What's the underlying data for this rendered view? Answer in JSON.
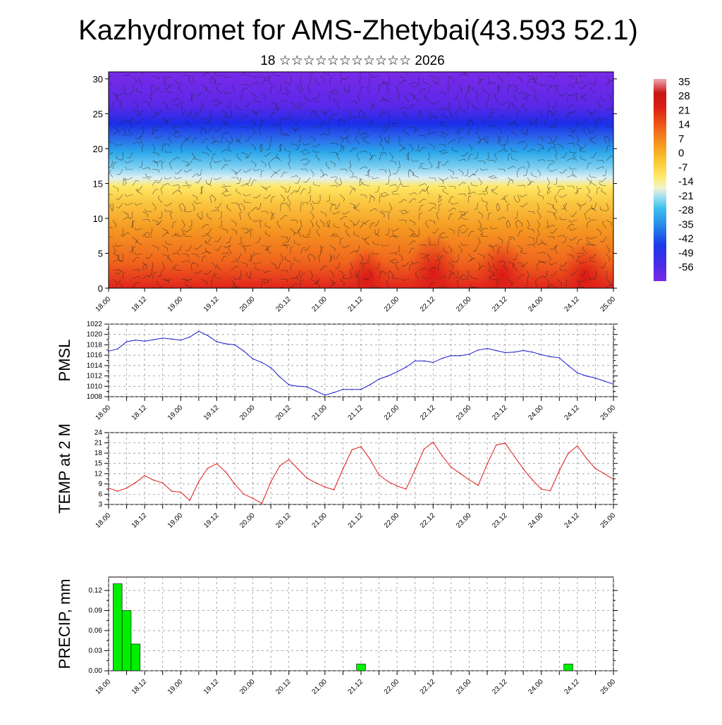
{
  "title": "Kazhydromet for AMS-Zhetybai(43.593 52.1)",
  "subtitle": "18 ☆☆☆☆☆☆☆☆☆☆☆ 2026",
  "x_tick_labels": [
    "18.00",
    "18.12",
    "19.00",
    "19.12",
    "20.00",
    "20.12",
    "21.00",
    "21.12",
    "22.00",
    "22.12",
    "23.00",
    "23.12",
    "24.00",
    "24.12",
    "25.00"
  ],
  "chart_data": [
    {
      "type": "heatmap",
      "name": "temperature-wind-cross-section",
      "y_axis": {
        "ticks": [
          0,
          5,
          10,
          15,
          20,
          25,
          30
        ],
        "range": [
          0,
          31
        ]
      },
      "colorbar": {
        "labels": [
          "35",
          "28",
          "21",
          "14",
          "7",
          "0",
          "-7",
          "-14",
          "-21",
          "-28",
          "-35",
          "-42",
          "-49",
          "-56"
        ],
        "values": [
          35,
          28,
          21,
          14,
          7,
          0,
          -7,
          -14,
          -21,
          -28,
          -35,
          -42,
          -49,
          -56
        ],
        "range": [
          -63,
          40
        ]
      },
      "colors": {
        "red": "#e0241c",
        "orange": "#f28a1c",
        "yellow": "#ffe05a",
        "lightblue": "#9fd8f0",
        "blue": "#1e3cf0",
        "purple": "#7a2ae8"
      }
    },
    {
      "type": "line",
      "name": "pmsl",
      "ylabel": "PMSL",
      "color": "#1a1acc",
      "y_ticks": [
        1008,
        1010,
        1012,
        1014,
        1016,
        1018,
        1020,
        1022
      ],
      "ylim": [
        1008,
        1022
      ],
      "x_step_hours": 3,
      "values": [
        1016.8,
        1017.2,
        1018.6,
        1018.9,
        1018.7,
        1019.0,
        1019.3,
        1019.1,
        1018.9,
        1019.5,
        1020.6,
        1019.8,
        1018.6,
        1018.2,
        1018.0,
        1016.8,
        1015.3,
        1014.6,
        1013.6,
        1011.8,
        1010.3,
        1010.0,
        1009.9,
        1009.1,
        1008.3,
        1008.8,
        1009.4,
        1009.4,
        1009.4,
        1010.3,
        1011.4,
        1012.0,
        1012.8,
        1013.7,
        1014.9,
        1014.9,
        1014.6,
        1015.4,
        1015.9,
        1015.9,
        1016.2,
        1017.0,
        1017.3,
        1016.9,
        1016.5,
        1016.6,
        1016.9,
        1016.6,
        1016.1,
        1015.7,
        1015.5,
        1014.0,
        1012.6,
        1012.0,
        1011.6,
        1011.0,
        1010.4
      ]
    },
    {
      "type": "line",
      "name": "temp-2m",
      "ylabel": "TEMP at 2 M",
      "color": "#dd1a1a",
      "y_ticks": [
        3,
        6,
        9,
        12,
        15,
        18,
        21,
        24
      ],
      "ylim": [
        3,
        24
      ],
      "x_step_hours": 3,
      "values": [
        7.8,
        6.9,
        7.8,
        9.4,
        11.4,
        10.1,
        9.3,
        6.9,
        6.6,
        4.2,
        9.7,
        13.6,
        14.9,
        12.5,
        8.9,
        6.0,
        4.8,
        3.3,
        9.6,
        14.3,
        16.1,
        13.4,
        10.7,
        9.3,
        8.1,
        7.3,
        13.4,
        19.0,
        19.9,
        16.2,
        11.6,
        9.7,
        8.4,
        7.5,
        13.2,
        19.2,
        21.2,
        17.2,
        13.9,
        12.1,
        10.2,
        8.6,
        14.8,
        20.4,
        20.9,
        17.1,
        13.4,
        10.2,
        7.5,
        7.0,
        12.9,
        18.0,
        20.1,
        16.5,
        13.5,
        12.0,
        10.3
      ]
    },
    {
      "type": "bar",
      "name": "precip",
      "ylabel": "PRECIP, mm",
      "color": "#00ee00",
      "y_ticks": [
        "0.00",
        "0.03",
        "0.06",
        "0.09",
        "0.12"
      ],
      "y_tick_values": [
        0,
        0.03,
        0.06,
        0.09,
        0.12
      ],
      "ylim": [
        0,
        0.14
      ],
      "bars": [
        {
          "hour": 3,
          "value": 0.13
        },
        {
          "hour": 6,
          "value": 0.09
        },
        {
          "hour": 9,
          "value": 0.04
        },
        {
          "hour": 84,
          "value": 0.01
        },
        {
          "hour": 153,
          "value": 0.01
        }
      ]
    }
  ]
}
